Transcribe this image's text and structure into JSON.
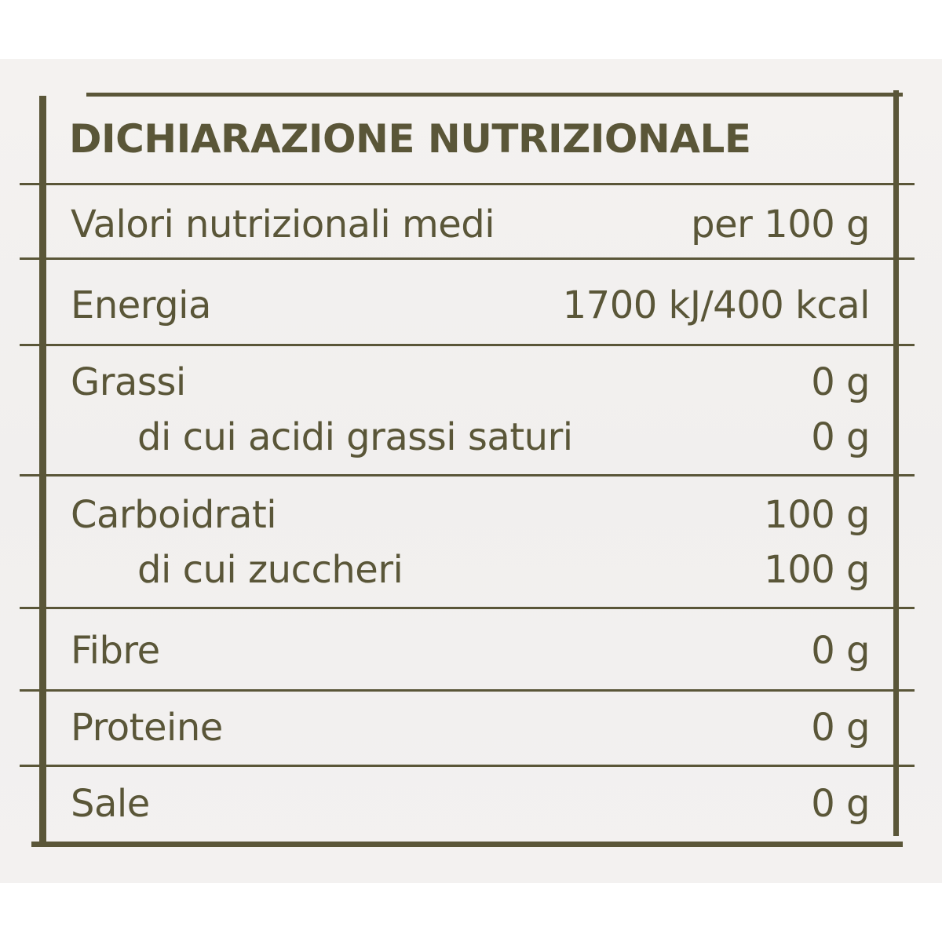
{
  "title": "DICHIARAZIONE NUTRIZIONALE",
  "header": {
    "label": "Valori nutrizionali medi",
    "value": "per 100 g"
  },
  "rows": [
    {
      "label": "Energia",
      "value": "1700 kJ/400 kcal"
    },
    {
      "label": "Grassi",
      "value": "0 g"
    },
    {
      "label": "di cui acidi grassi saturi",
      "value": "0 g"
    },
    {
      "label": "Carboidrati",
      "value": "100 g"
    },
    {
      "label": "di cui zuccheri",
      "value": "100 g"
    },
    {
      "label": "Fibre",
      "value": "0 g"
    },
    {
      "label": "Proteine",
      "value": "0 g"
    },
    {
      "label": "Sale",
      "value": "0 g"
    }
  ],
  "colors": {
    "ink": "#5a5638",
    "background": "#f3f1f0"
  }
}
